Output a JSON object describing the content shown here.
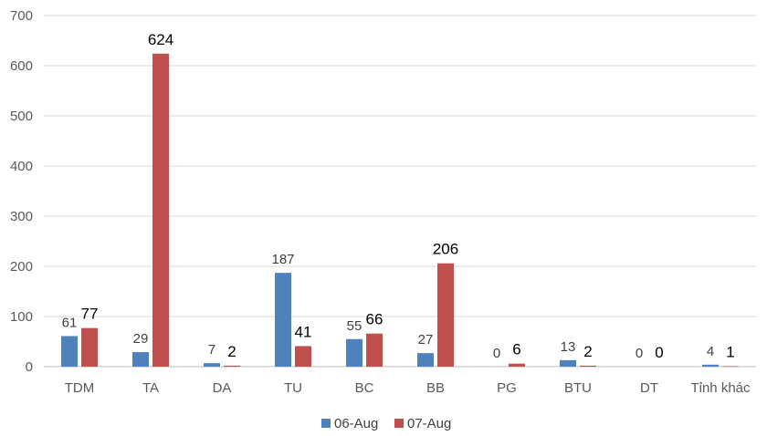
{
  "chart_data": {
    "type": "bar",
    "categories": [
      "TDM",
      "TA",
      "DA",
      "TU",
      "BC",
      "BB",
      "PG",
      "BTU",
      "DT",
      "Tỉnh khác"
    ],
    "series": [
      {
        "name": "06-Aug",
        "color": "#4f81bd",
        "values": [
          61,
          29,
          7,
          187,
          55,
          27,
          0,
          13,
          0,
          4
        ]
      },
      {
        "name": "07-Aug",
        "color": "#c0504d",
        "values": [
          77,
          624,
          2,
          41,
          66,
          206,
          6,
          2,
          0,
          1
        ]
      }
    ],
    "ylim": [
      0,
      700
    ],
    "yticks": [
      0,
      100,
      200,
      300,
      400,
      500,
      600,
      700
    ],
    "grid": true,
    "legend": "bottom"
  }
}
